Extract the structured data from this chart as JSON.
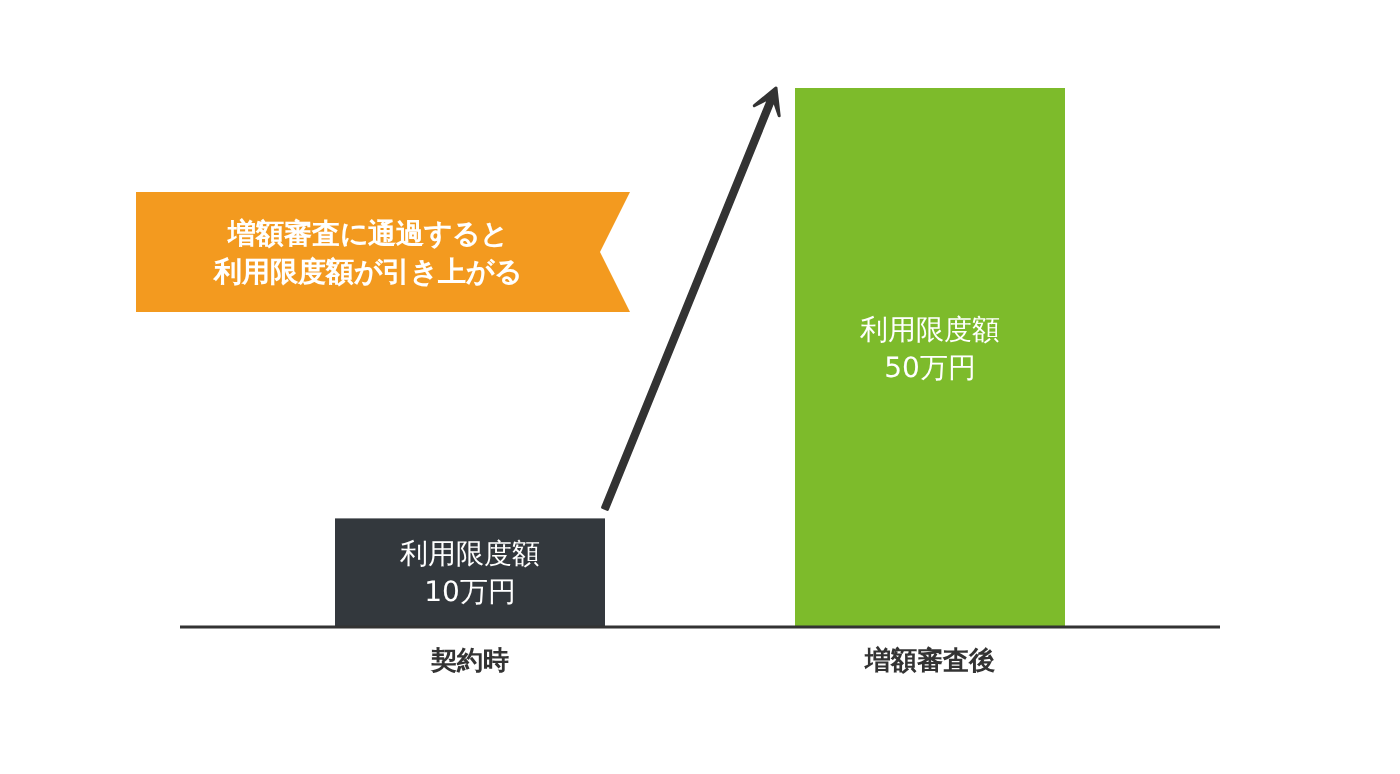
{
  "chart_data": {
    "type": "bar",
    "categories": [
      "契約時",
      "増額審査後"
    ],
    "values": [
      10,
      50
    ],
    "colors": [
      "#33383d",
      "#7dbb2b"
    ],
    "value_labels": [
      "利用限度額\n10万円",
      "利用限度額\n50万円"
    ],
    "annotations": [
      "増額審査に通過すると",
      "利用限度額が引き上がる"
    ]
  }
}
